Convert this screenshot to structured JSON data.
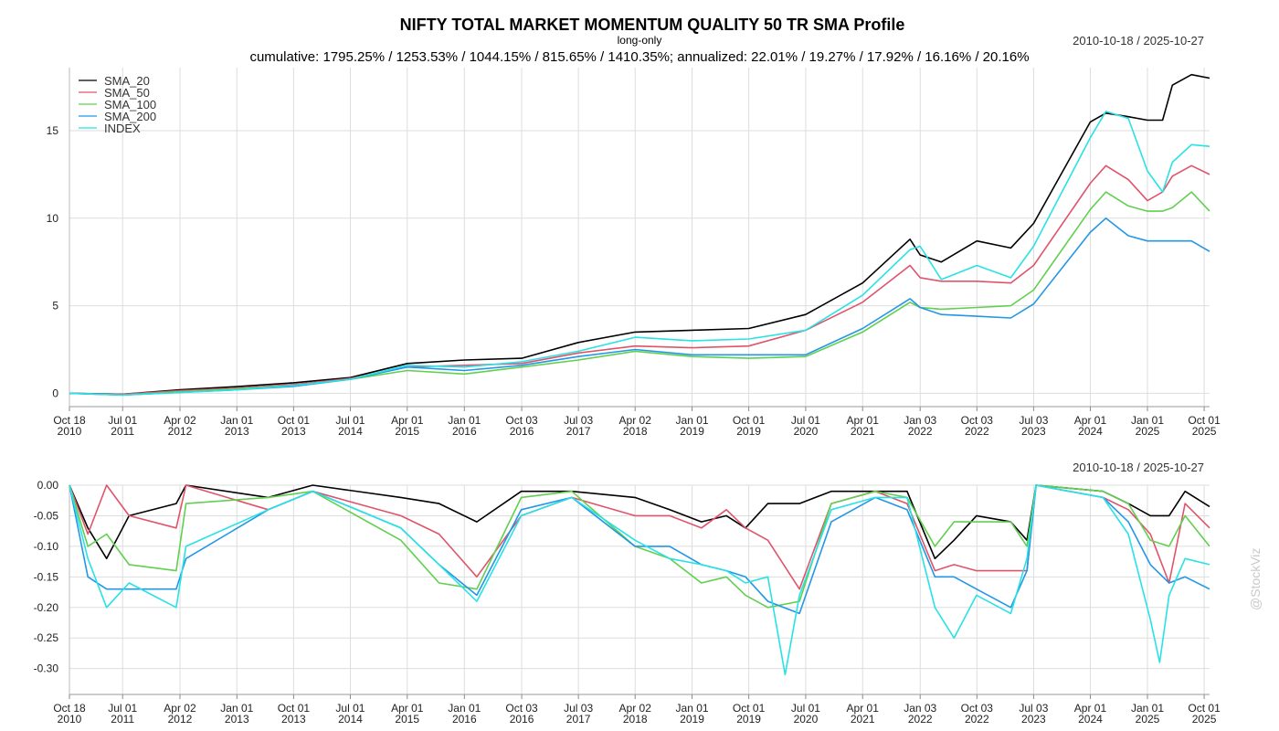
{
  "title": "NIFTY TOTAL MARKET MOMENTUM QUALITY 50 TR SMA Profile",
  "subtitle": "long-only",
  "summary": "cumulative: 1795.25% / 1253.53% / 1044.15% / 815.65% / 1410.35%; annualized: 22.01% / 19.27% / 17.92% / 16.16% / 20.16%",
  "date_range_top": "2010-10-18 / 2025-10-27",
  "date_range_bottom": "2010-10-18 / 2025-10-27",
  "watermark": "@StockViz",
  "colors": {
    "SMA_20": "#000000",
    "SMA_50": "#df536b",
    "SMA_100": "#61d04f",
    "SMA_200": "#2297e6",
    "INDEX": "#28e2e5"
  },
  "x_ticks": [
    {
      "l1": "Oct 18",
      "l2": "2010",
      "d": "2010-10-18"
    },
    {
      "l1": "Jul 01",
      "l2": "2011",
      "d": "2011-07-01"
    },
    {
      "l1": "Apr 02",
      "l2": "2012",
      "d": "2012-04-02"
    },
    {
      "l1": "Jan 01",
      "l2": "2013",
      "d": "2013-01-01"
    },
    {
      "l1": "Oct 01",
      "l2": "2013",
      "d": "2013-10-01"
    },
    {
      "l1": "Jul 01",
      "l2": "2014",
      "d": "2014-07-01"
    },
    {
      "l1": "Apr 01",
      "l2": "2015",
      "d": "2015-04-01"
    },
    {
      "l1": "Jan 01",
      "l2": "2016",
      "d": "2016-01-01"
    },
    {
      "l1": "Oct 03",
      "l2": "2016",
      "d": "2016-10-03"
    },
    {
      "l1": "Jul 03",
      "l2": "2017",
      "d": "2017-07-03"
    },
    {
      "l1": "Apr 02",
      "l2": "2018",
      "d": "2018-04-02"
    },
    {
      "l1": "Jan 01",
      "l2": "2019",
      "d": "2019-01-01"
    },
    {
      "l1": "Oct 01",
      "l2": "2019",
      "d": "2019-10-01"
    },
    {
      "l1": "Jul 01",
      "l2": "2020",
      "d": "2020-07-01"
    },
    {
      "l1": "Apr 01",
      "l2": "2021",
      "d": "2021-04-01"
    },
    {
      "l1": "Jan 03",
      "l2": "2022",
      "d": "2022-01-03"
    },
    {
      "l1": "Oct 03",
      "l2": "2022",
      "d": "2022-10-03"
    },
    {
      "l1": "Jul 03",
      "l2": "2023",
      "d": "2023-07-03"
    },
    {
      "l1": "Apr 01",
      "l2": "2024",
      "d": "2024-04-01"
    },
    {
      "l1": "Jan 01",
      "l2": "2025",
      "d": "2025-01-01"
    },
    {
      "l1": "Oct 01",
      "l2": "2025",
      "d": "2025-10-01"
    }
  ],
  "chart_data": [
    {
      "type": "line",
      "title": "NIFTY TOTAL MARKET MOMENTUM QUALITY 50 TR SMA Profile",
      "ylabel": "",
      "x_range": [
        "2010-10-18",
        "2025-10-27"
      ],
      "ylim": [
        -0.5,
        18.6
      ],
      "yticks": [
        0,
        5,
        10,
        15
      ],
      "grid": true,
      "legend": "top-left",
      "series": [
        {
          "name": "SMA_20",
          "x": [
            "2010-10-18",
            "2011-07-01",
            "2012-04-02",
            "2013-01-01",
            "2013-10-01",
            "2014-07-01",
            "2015-04-01",
            "2016-01-01",
            "2016-10-03",
            "2017-07-03",
            "2018-04-02",
            "2019-01-01",
            "2019-10-01",
            "2020-07-01",
            "2021-04-01",
            "2021-11-15",
            "2022-01-03",
            "2022-04-15",
            "2022-10-03",
            "2023-03-15",
            "2023-07-03",
            "2024-04-01",
            "2024-06-15",
            "2024-10-01",
            "2025-01-01",
            "2025-03-15",
            "2025-05-01",
            "2025-08-01",
            "2025-10-27"
          ],
          "values": [
            0.0,
            -0.05,
            0.2,
            0.38,
            0.6,
            0.9,
            1.7,
            1.9,
            2.0,
            2.9,
            3.5,
            3.6,
            3.7,
            4.5,
            6.3,
            8.8,
            7.9,
            7.5,
            8.7,
            8.3,
            9.7,
            15.5,
            16.0,
            15.8,
            15.6,
            15.6,
            17.6,
            18.2,
            18.0
          ]
        },
        {
          "name": "SMA_50",
          "x": [
            "2010-10-18",
            "2011-07-01",
            "2012-04-02",
            "2013-01-01",
            "2013-10-01",
            "2014-07-01",
            "2015-04-01",
            "2016-01-01",
            "2016-10-03",
            "2017-07-03",
            "2018-04-02",
            "2019-01-01",
            "2019-10-01",
            "2020-07-01",
            "2021-04-01",
            "2021-11-15",
            "2022-01-03",
            "2022-04-15",
            "2022-10-03",
            "2023-03-15",
            "2023-07-03",
            "2024-04-01",
            "2024-06-15",
            "2024-10-01",
            "2025-01-01",
            "2025-03-15",
            "2025-05-01",
            "2025-08-01",
            "2025-10-27"
          ],
          "values": [
            0.0,
            -0.05,
            0.15,
            0.3,
            0.5,
            0.85,
            1.5,
            1.6,
            1.7,
            2.3,
            2.7,
            2.6,
            2.7,
            3.6,
            5.2,
            7.3,
            6.6,
            6.4,
            6.4,
            6.3,
            7.3,
            12.0,
            13.0,
            12.2,
            11.0,
            11.5,
            12.4,
            13.0,
            12.5
          ]
        },
        {
          "name": "SMA_100",
          "x": [
            "2010-10-18",
            "2011-07-01",
            "2012-04-02",
            "2013-01-01",
            "2013-10-01",
            "2014-07-01",
            "2015-04-01",
            "2016-01-01",
            "2016-10-03",
            "2017-07-03",
            "2018-04-02",
            "2019-01-01",
            "2019-10-01",
            "2020-07-01",
            "2021-04-01",
            "2021-11-15",
            "2022-01-03",
            "2022-04-15",
            "2022-10-03",
            "2023-03-15",
            "2023-07-03",
            "2024-04-01",
            "2024-06-15",
            "2024-10-01",
            "2025-01-01",
            "2025-03-15",
            "2025-05-01",
            "2025-08-01",
            "2025-10-27"
          ],
          "values": [
            0.0,
            -0.1,
            0.1,
            0.25,
            0.45,
            0.8,
            1.3,
            1.1,
            1.5,
            1.9,
            2.4,
            2.1,
            2.0,
            2.1,
            3.5,
            5.2,
            4.9,
            4.8,
            4.9,
            5.0,
            5.9,
            10.5,
            11.5,
            10.7,
            10.4,
            10.4,
            10.6,
            11.5,
            10.4
          ]
        },
        {
          "name": "SMA_200",
          "x": [
            "2010-10-18",
            "2011-07-01",
            "2012-04-02",
            "2013-01-01",
            "2013-10-01",
            "2014-07-01",
            "2015-04-01",
            "2016-01-01",
            "2016-10-03",
            "2017-07-03",
            "2018-04-02",
            "2019-01-01",
            "2019-10-01",
            "2020-07-01",
            "2021-04-01",
            "2021-11-15",
            "2022-01-03",
            "2022-04-15",
            "2022-10-03",
            "2023-03-15",
            "2023-07-03",
            "2024-04-01",
            "2024-06-15",
            "2024-10-01",
            "2025-01-01",
            "2025-03-15",
            "2025-05-01",
            "2025-08-01",
            "2025-10-27"
          ],
          "values": [
            0.0,
            -0.1,
            0.05,
            0.2,
            0.4,
            0.8,
            1.5,
            1.3,
            1.6,
            2.1,
            2.5,
            2.2,
            2.2,
            2.2,
            3.7,
            5.4,
            4.9,
            4.5,
            4.4,
            4.3,
            5.1,
            9.2,
            10.0,
            9.0,
            8.7,
            8.7,
            8.7,
            8.7,
            8.1
          ]
        },
        {
          "name": "INDEX",
          "x": [
            "2010-10-18",
            "2011-07-01",
            "2012-04-02",
            "2013-01-01",
            "2013-10-01",
            "2014-07-01",
            "2015-04-01",
            "2016-01-01",
            "2016-10-03",
            "2017-07-03",
            "2018-04-02",
            "2019-01-01",
            "2019-10-01",
            "2020-07-01",
            "2021-04-01",
            "2021-11-15",
            "2022-01-03",
            "2022-04-15",
            "2022-10-03",
            "2023-03-15",
            "2023-07-03",
            "2024-04-01",
            "2024-06-15",
            "2024-10-01",
            "2025-01-01",
            "2025-03-15",
            "2025-05-01",
            "2025-08-01",
            "2025-10-27"
          ],
          "values": [
            0.0,
            -0.1,
            0.05,
            0.2,
            0.45,
            0.8,
            1.6,
            1.5,
            1.8,
            2.4,
            3.2,
            3.0,
            3.1,
            3.6,
            5.6,
            8.2,
            8.4,
            6.5,
            7.3,
            6.6,
            8.4,
            14.6,
            16.1,
            15.7,
            12.7,
            11.5,
            13.2,
            14.2,
            14.1
          ]
        }
      ]
    },
    {
      "type": "line",
      "title": "",
      "ylabel": "",
      "x_range": [
        "2010-10-18",
        "2025-10-27"
      ],
      "ylim": [
        -0.32,
        0.0
      ],
      "yticks": [
        "0.00",
        "-0.05",
        "-0.10",
        "-0.15",
        "-0.20",
        "-0.25",
        "-0.30"
      ],
      "grid": true,
      "series": [
        {
          "name": "SMA_20",
          "x": [
            "2010-10-18",
            "2011-01-15",
            "2011-04-15",
            "2011-08-01",
            "2012-03-15",
            "2012-05-01",
            "2013-06-01",
            "2014-01-01",
            "2015-03-01",
            "2015-09-01",
            "2016-03-01",
            "2016-10-01",
            "2017-06-01",
            "2018-04-01",
            "2018-09-15",
            "2019-02-15",
            "2019-06-15",
            "2019-09-15",
            "2020-01-01",
            "2020-06-01",
            "2020-11-01",
            "2021-06-01",
            "2021-11-01",
            "2022-03-15",
            "2022-06-15",
            "2022-10-01",
            "2023-03-15",
            "2023-06-01",
            "2023-07-15",
            "2024-06-01",
            "2024-10-01",
            "2025-01-15",
            "2025-04-15",
            "2025-07-01",
            "2025-10-27"
          ],
          "values": [
            0.0,
            -0.07,
            -0.12,
            -0.05,
            -0.03,
            0.0,
            -0.02,
            0.0,
            -0.02,
            -0.03,
            -0.06,
            -0.01,
            -0.01,
            -0.02,
            -0.04,
            -0.06,
            -0.05,
            -0.07,
            -0.03,
            -0.03,
            -0.01,
            -0.01,
            -0.01,
            -0.12,
            -0.09,
            -0.05,
            -0.06,
            -0.09,
            0.0,
            -0.01,
            -0.03,
            -0.05,
            -0.05,
            -0.01,
            -0.035
          ]
        },
        {
          "name": "SMA_50",
          "x": [
            "2010-10-18",
            "2011-01-15",
            "2011-04-15",
            "2011-08-01",
            "2012-03-15",
            "2012-05-01",
            "2013-06-01",
            "2014-01-01",
            "2015-03-01",
            "2015-09-01",
            "2016-03-01",
            "2016-10-01",
            "2017-06-01",
            "2018-04-01",
            "2018-09-15",
            "2019-02-15",
            "2019-06-15",
            "2019-09-15",
            "2020-01-01",
            "2020-06-01",
            "2020-11-01",
            "2021-06-01",
            "2021-11-01",
            "2022-03-15",
            "2022-06-15",
            "2022-10-01",
            "2023-03-15",
            "2023-06-01",
            "2023-07-15",
            "2024-06-01",
            "2024-10-01",
            "2025-01-15",
            "2025-04-15",
            "2025-07-01",
            "2025-10-27"
          ],
          "values": [
            0.0,
            -0.08,
            0.0,
            -0.05,
            -0.07,
            0.0,
            -0.04,
            -0.01,
            -0.05,
            -0.08,
            -0.15,
            -0.05,
            -0.02,
            -0.05,
            -0.05,
            -0.07,
            -0.04,
            -0.07,
            -0.09,
            -0.17,
            -0.03,
            -0.01,
            -0.03,
            -0.14,
            -0.13,
            -0.14,
            -0.14,
            -0.14,
            0.0,
            -0.02,
            -0.04,
            -0.08,
            -0.16,
            -0.03,
            -0.07
          ]
        },
        {
          "name": "SMA_100",
          "x": [
            "2010-10-18",
            "2011-01-15",
            "2011-04-15",
            "2011-08-01",
            "2012-03-15",
            "2012-05-01",
            "2013-06-01",
            "2014-01-01",
            "2015-03-01",
            "2015-09-01",
            "2016-03-01",
            "2016-10-01",
            "2017-06-01",
            "2018-04-01",
            "2018-09-15",
            "2019-02-15",
            "2019-06-15",
            "2019-09-15",
            "2020-01-01",
            "2020-06-01",
            "2020-11-01",
            "2021-06-01",
            "2021-11-01",
            "2022-03-15",
            "2022-06-15",
            "2022-10-01",
            "2023-03-15",
            "2023-06-01",
            "2023-07-15",
            "2024-06-01",
            "2024-10-01",
            "2025-01-15",
            "2025-04-15",
            "2025-07-01",
            "2025-10-27"
          ],
          "values": [
            0.0,
            -0.1,
            -0.08,
            -0.13,
            -0.14,
            -0.03,
            -0.02,
            -0.01,
            -0.09,
            -0.16,
            -0.17,
            -0.02,
            -0.01,
            -0.1,
            -0.12,
            -0.16,
            -0.15,
            -0.18,
            -0.2,
            -0.19,
            -0.03,
            -0.01,
            -0.02,
            -0.1,
            -0.06,
            -0.06,
            -0.06,
            -0.1,
            0.0,
            -0.01,
            -0.03,
            -0.09,
            -0.1,
            -0.05,
            -0.1
          ]
        },
        {
          "name": "SMA_200",
          "x": [
            "2010-10-18",
            "2011-01-15",
            "2011-04-15",
            "2011-08-01",
            "2012-03-15",
            "2012-05-01",
            "2013-06-01",
            "2014-01-01",
            "2015-03-01",
            "2015-09-01",
            "2016-03-01",
            "2016-10-01",
            "2017-06-01",
            "2018-04-01",
            "2018-09-15",
            "2019-02-15",
            "2019-06-15",
            "2019-09-15",
            "2020-01-01",
            "2020-06-01",
            "2020-11-01",
            "2021-06-01",
            "2021-11-01",
            "2022-03-15",
            "2022-06-15",
            "2022-10-01",
            "2023-03-15",
            "2023-06-01",
            "2023-07-15",
            "2024-06-01",
            "2024-10-01",
            "2025-01-15",
            "2025-04-15",
            "2025-07-01",
            "2025-10-27"
          ],
          "values": [
            0.0,
            -0.15,
            -0.17,
            -0.17,
            -0.17,
            -0.12,
            -0.04,
            -0.01,
            -0.07,
            -0.13,
            -0.18,
            -0.04,
            -0.02,
            -0.1,
            -0.1,
            -0.13,
            -0.14,
            -0.15,
            -0.19,
            -0.21,
            -0.06,
            -0.02,
            -0.04,
            -0.15,
            -0.15,
            -0.17,
            -0.2,
            -0.14,
            0.0,
            -0.02,
            -0.06,
            -0.13,
            -0.16,
            -0.15,
            -0.17
          ]
        },
        {
          "name": "INDEX",
          "x": [
            "2010-10-18",
            "2011-01-15",
            "2011-04-15",
            "2011-08-01",
            "2012-03-15",
            "2012-05-01",
            "2013-06-01",
            "2014-01-01",
            "2015-03-01",
            "2015-09-01",
            "2016-03-01",
            "2016-10-01",
            "2017-06-01",
            "2018-04-01",
            "2018-09-15",
            "2019-02-15",
            "2019-06-15",
            "2019-09-15",
            "2020-01-01",
            "2020-03-24",
            "2020-06-01",
            "2020-11-01",
            "2021-06-01",
            "2021-11-01",
            "2022-03-15",
            "2022-06-15",
            "2022-10-01",
            "2023-03-15",
            "2023-06-01",
            "2023-07-15",
            "2024-06-01",
            "2024-10-01",
            "2025-01-15",
            "2025-03-01",
            "2025-04-15",
            "2025-07-01",
            "2025-10-27"
          ],
          "values": [
            0.0,
            -0.12,
            -0.2,
            -0.16,
            -0.2,
            -0.1,
            -0.04,
            -0.01,
            -0.07,
            -0.13,
            -0.19,
            -0.05,
            -0.02,
            -0.09,
            -0.12,
            -0.13,
            -0.14,
            -0.16,
            -0.15,
            -0.31,
            -0.18,
            -0.04,
            -0.02,
            -0.02,
            -0.2,
            -0.25,
            -0.18,
            -0.21,
            -0.12,
            0.0,
            -0.02,
            -0.08,
            -0.22,
            -0.29,
            -0.18,
            -0.12,
            -0.13
          ]
        }
      ]
    }
  ]
}
